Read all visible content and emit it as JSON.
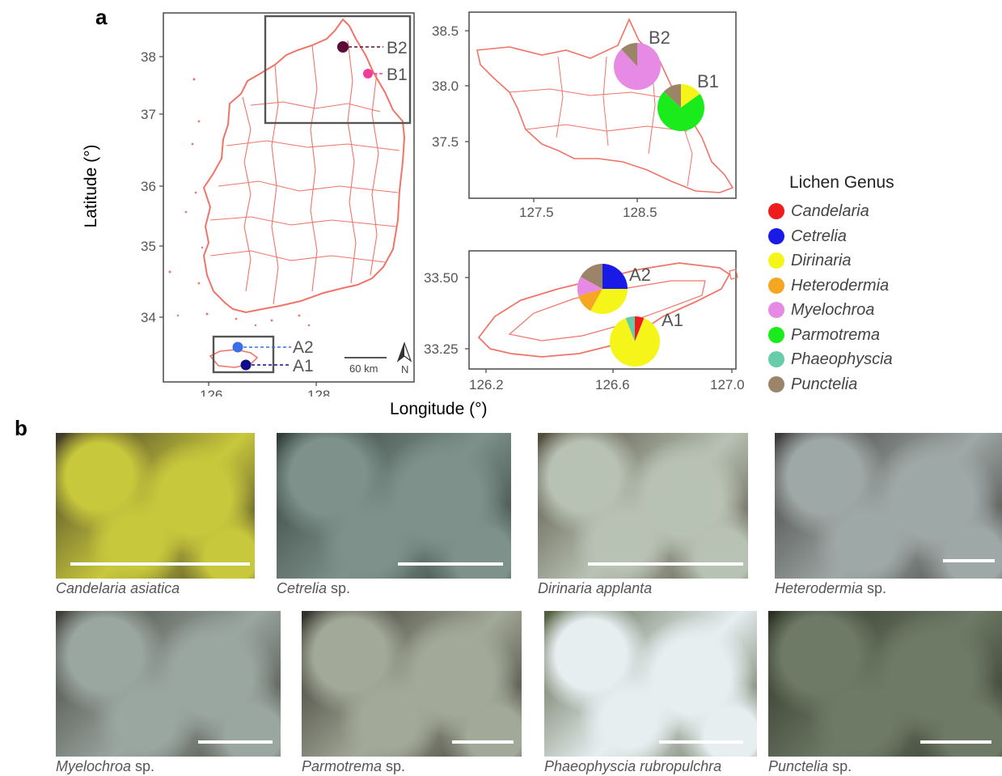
{
  "panels": {
    "a": "a",
    "b": "b"
  },
  "axes": {
    "xlabel": "Longitude (°)",
    "ylabel": "Latitude (°)"
  },
  "main_map": {
    "x_ticks": [
      "126",
      "128"
    ],
    "y_ticks": [
      "38",
      "37",
      "36",
      "35",
      "34"
    ],
    "scale_bar": "60 km",
    "north": "N",
    "sites": [
      {
        "label": "B2",
        "color": "#5c0a36"
      },
      {
        "label": "B1",
        "color": "#f03c9a"
      },
      {
        "label": "A2",
        "color": "#3c6ee6"
      },
      {
        "label": "A1",
        "color": "#0d0d8c"
      }
    ]
  },
  "inset_north": {
    "x_ticks": [
      "127.5",
      "128.5"
    ],
    "y_ticks": [
      "38.5",
      "38.0",
      "37.5"
    ],
    "sites": [
      {
        "label": "B2",
        "composition": [
          {
            "genus": "Myelochroa",
            "value": 0.88
          },
          {
            "genus": "Punctelia",
            "value": 0.12
          }
        ]
      },
      {
        "label": "B1",
        "composition": [
          {
            "genus": "Dirinaria",
            "value": 0.15
          },
          {
            "genus": "Parmotrema",
            "value": 0.72
          },
          {
            "genus": "Punctelia",
            "value": 0.13
          }
        ]
      }
    ]
  },
  "inset_south": {
    "x_ticks": [
      "126.2",
      "126.6",
      "127.0"
    ],
    "y_ticks": [
      "33.50",
      "33.25"
    ],
    "sites": [
      {
        "label": "A2",
        "composition": [
          {
            "genus": "Cetrelia",
            "value": 0.25
          },
          {
            "genus": "Dirinaria",
            "value": 0.33
          },
          {
            "genus": "Heterodermia",
            "value": 0.125
          },
          {
            "genus": "Myelochroa",
            "value": 0.125
          },
          {
            "genus": "Punctelia",
            "value": 0.17
          }
        ]
      },
      {
        "label": "A1",
        "composition": [
          {
            "genus": "Candelaria",
            "value": 0.06
          },
          {
            "genus": "Dirinaria",
            "value": 0.88
          },
          {
            "genus": "Phaeophyscia",
            "value": 0.06
          }
        ]
      }
    ]
  },
  "legend": {
    "title": "Lichen Genus",
    "items": [
      {
        "name": "Candelaria",
        "color": "#ee1c1c"
      },
      {
        "name": "Cetrelia",
        "color": "#1a1ae6"
      },
      {
        "name": "Dirinaria",
        "color": "#f5f51a"
      },
      {
        "name": "Heterodermia",
        "color": "#f5a623"
      },
      {
        "name": "Myelochroa",
        "color": "#e68ae6"
      },
      {
        "name": "Parmotrema",
        "color": "#1aeb1a"
      },
      {
        "name": "Phaeophyscia",
        "color": "#66ccaa"
      },
      {
        "name": "Punctelia",
        "color": "#9c8468"
      }
    ]
  },
  "photos": [
    {
      "genus": "Candelaria",
      "epithet": " asiatica",
      "palette": [
        "#c8c83c",
        "#3a3428"
      ]
    },
    {
      "genus": "Cetrelia",
      "epithet": " sp.",
      "palette": [
        "#7e918b",
        "#2f3a37"
      ]
    },
    {
      "genus": "Dirinaria",
      "epithet": " applanta",
      "palette": [
        "#b8c2b4",
        "#4f4838"
      ]
    },
    {
      "genus": "Heterodermia",
      "epithet": " sp.",
      "palette": [
        "#9ea8a6",
        "#3a3634"
      ]
    },
    {
      "genus": "Myelochroa",
      "epithet": " sp.",
      "palette": [
        "#9aa6a0",
        "#3d3b36"
      ]
    },
    {
      "genus": "Parmotrema",
      "epithet": " sp.",
      "palette": [
        "#a3a998",
        "#2e2c26"
      ]
    },
    {
      "genus": "Phaeophyscia",
      "epithet": " rubropulchra",
      "palette": [
        "#e6eef0",
        "#4e5a3a"
      ]
    },
    {
      "genus": "Punctelia",
      "epithet": " sp.",
      "palette": [
        "#6e7a66",
        "#2a2e22"
      ]
    }
  ]
}
